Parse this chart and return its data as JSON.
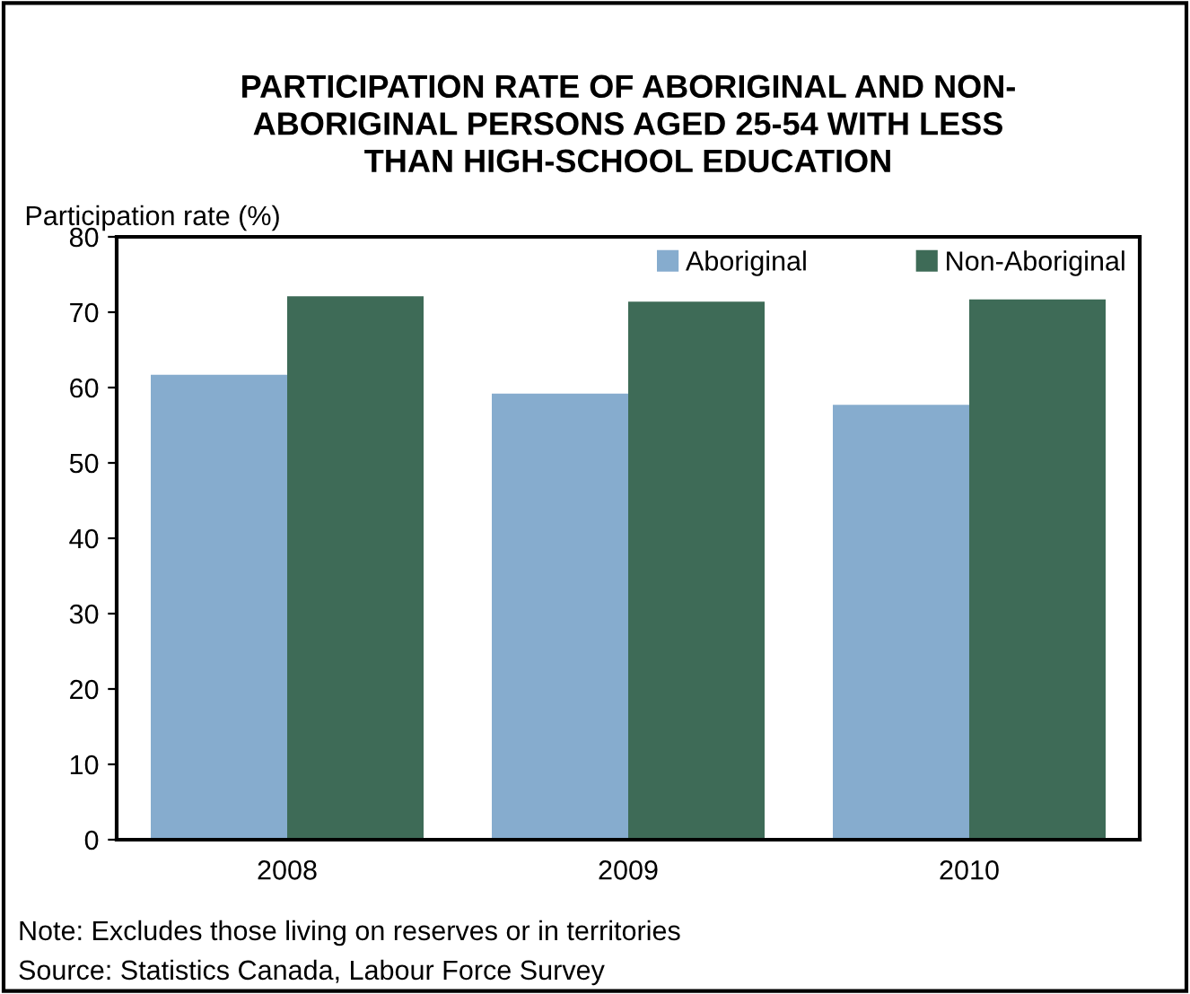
{
  "chart_data": {
    "type": "bar",
    "title": "PARTICIPATION RATE OF ABORIGINAL AND NON-\nABORIGINAL PERSONS AGED 25-54 WITH LESS\nTHAN HIGH-SCHOOL EDUCATION",
    "ylabel": "Participation rate (%)",
    "categories": [
      "2008",
      "2009",
      "2010"
    ],
    "series": [
      {
        "name": "Aboriginal",
        "color": "#86acce",
        "values": [
          61.7,
          59.2,
          57.7
        ]
      },
      {
        "name": "Non-Aboriginal",
        "color": "#3e6b57",
        "values": [
          72.1,
          71.4,
          71.7
        ]
      }
    ],
    "ylim": [
      0,
      80
    ],
    "yticks": [
      0,
      10,
      20,
      30,
      40,
      50,
      60,
      70,
      80
    ],
    "grid": false,
    "legend": "top right",
    "annotations": [
      "Note: Excludes those living on reserves or in territories",
      "Source: Statistics Canada, Labour Force Survey"
    ]
  }
}
